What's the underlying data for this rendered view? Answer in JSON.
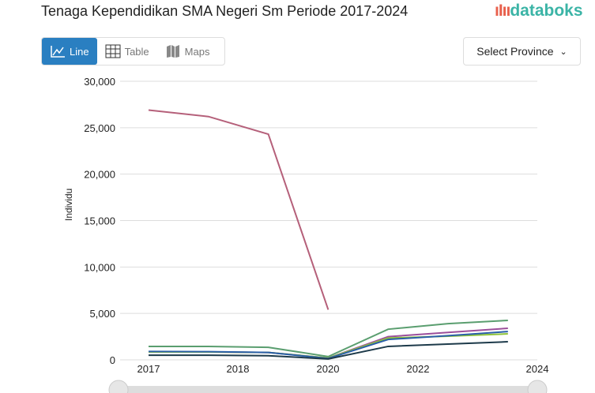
{
  "header": {
    "title": "Tenaga Kependidikan SMA Negeri Sm Periode 2017-2024",
    "logo": "databoks"
  },
  "tabs": [
    {
      "label": "Line",
      "icon": "line-chart-icon"
    },
    {
      "label": "Table",
      "icon": "table-icon"
    },
    {
      "label": "Maps",
      "icon": "map-icon"
    }
  ],
  "province_select": {
    "label": "Select Province"
  },
  "chart_data": {
    "type": "line",
    "ylabel": "Individu",
    "ylim": [
      0,
      30000
    ],
    "yticks": [
      "0",
      "5,000",
      "10,000",
      "15,000",
      "20,000",
      "25,000",
      "30,000"
    ],
    "ytick_values": [
      0,
      5000,
      10000,
      15000,
      20000,
      25000,
      30000
    ],
    "xtick_labels": [
      "2017",
      "2018",
      "2020",
      "2022",
      "2024"
    ],
    "x": [
      2017,
      2018,
      2019,
      2020,
      2021,
      2022,
      2023
    ],
    "grid": true,
    "series": [
      {
        "color": "#b5607a",
        "values": [
          26900,
          26200,
          24300,
          5400,
          null,
          null,
          null
        ]
      },
      {
        "color": "#5a9e6f",
        "values": [
          1450,
          1450,
          1350,
          350,
          3300,
          3900,
          4250
        ]
      },
      {
        "color": "#9b4f9b",
        "values": [
          850,
          850,
          800,
          200,
          2500,
          2950,
          3400
        ]
      },
      {
        "color": "#8fc33a",
        "values": [
          850,
          850,
          800,
          200,
          2350,
          2550,
          2800
        ]
      },
      {
        "color": "#2a5fa8",
        "values": [
          900,
          880,
          800,
          150,
          2200,
          2600,
          3050
        ]
      },
      {
        "color": "#1d3a4a",
        "values": [
          500,
          500,
          450,
          100,
          1450,
          1700,
          1950
        ]
      }
    ]
  }
}
